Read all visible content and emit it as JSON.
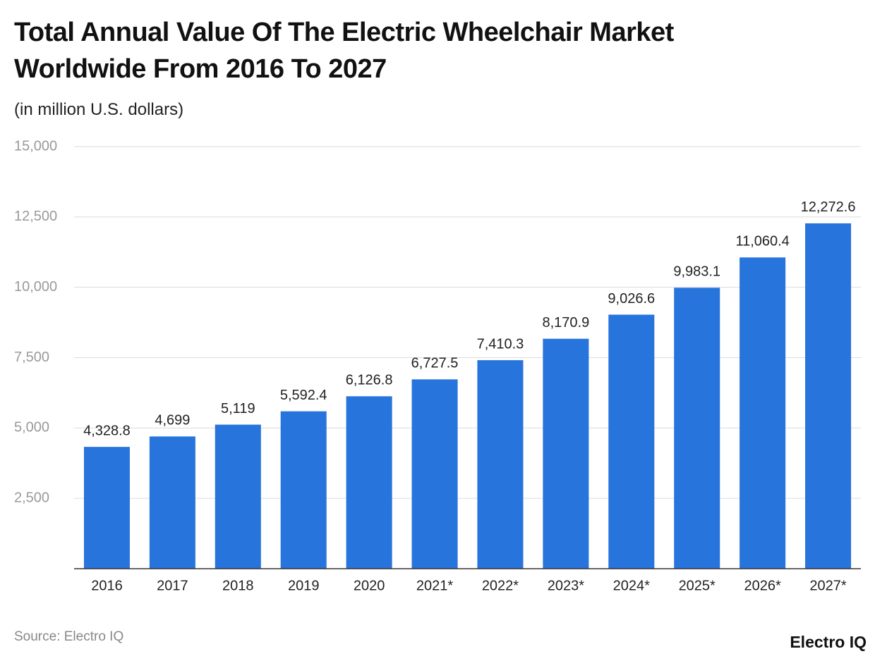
{
  "chart_data": {
    "type": "bar",
    "title": "Total Annual Value Of The Electric Wheelchair Market Worldwide From 2016 To 2027",
    "subtitle": "(in million U.S. dollars)",
    "source": "Source: Electro IQ",
    "brand": "Electro IQ",
    "categories": [
      "2016",
      "2017",
      "2018",
      "2019",
      "2020",
      "2021*",
      "2022*",
      "2023*",
      "2024*",
      "2025*",
      "2026*",
      "2027*"
    ],
    "values": [
      4328.8,
      4699,
      5119,
      5592.4,
      6126.8,
      6727.5,
      7410.3,
      8170.9,
      9026.6,
      9983.1,
      11060.4,
      12272.6
    ],
    "value_labels": [
      "4,328.8",
      "4,699",
      "5,119",
      "5,592.4",
      "6,126.8",
      "6,727.5",
      "7,410.3",
      "8,170.9",
      "9,026.6",
      "9,983.1",
      "11,060.4",
      "12,272.6"
    ],
    "color": "#2874dd",
    "ylim": [
      0,
      15000
    ],
    "yticks": [
      {
        "value": 2500,
        "label": "2,500"
      },
      {
        "value": 5000,
        "label": "5,000"
      },
      {
        "value": 7500,
        "label": "7,500"
      },
      {
        "value": 10000,
        "label": "10,000"
      },
      {
        "value": 12500,
        "label": "12,500"
      },
      {
        "value": 15000,
        "label": "15,000"
      }
    ],
    "grid": true
  }
}
